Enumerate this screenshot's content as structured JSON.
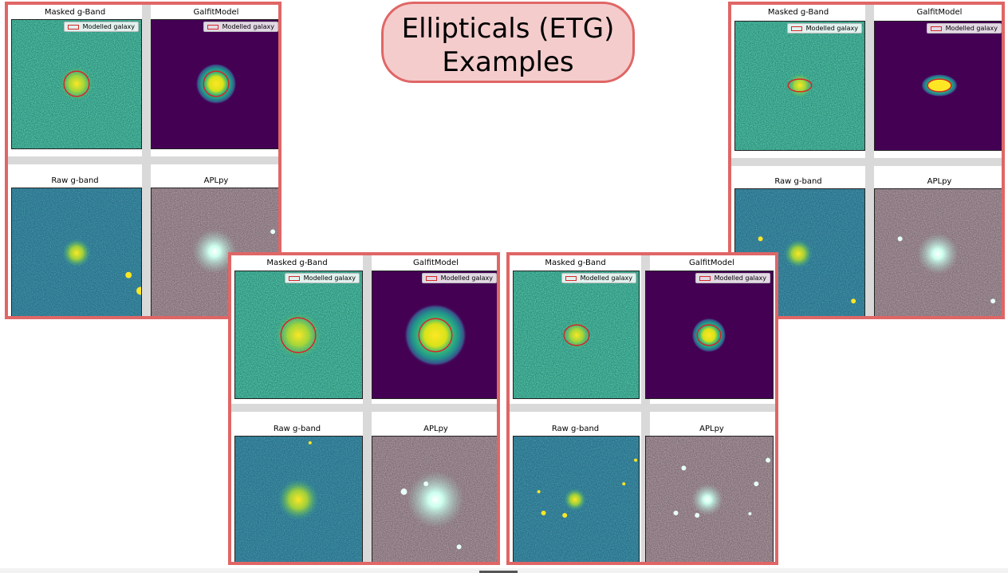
{
  "slide": {
    "title_line1": "Ellipticals (ETG)",
    "title_line2": "Examples"
  },
  "labels": {
    "masked": "Masked g-Band",
    "model": "GalfitModel",
    "raw": "Raw g-band",
    "aplpy": "APLpy",
    "legend": "Modelled galaxy"
  },
  "colors": {
    "panel_border": "#e06666",
    "title_fill": "#f4cccc",
    "ellipse": "#d62728",
    "model_bg": "#440154"
  }
}
